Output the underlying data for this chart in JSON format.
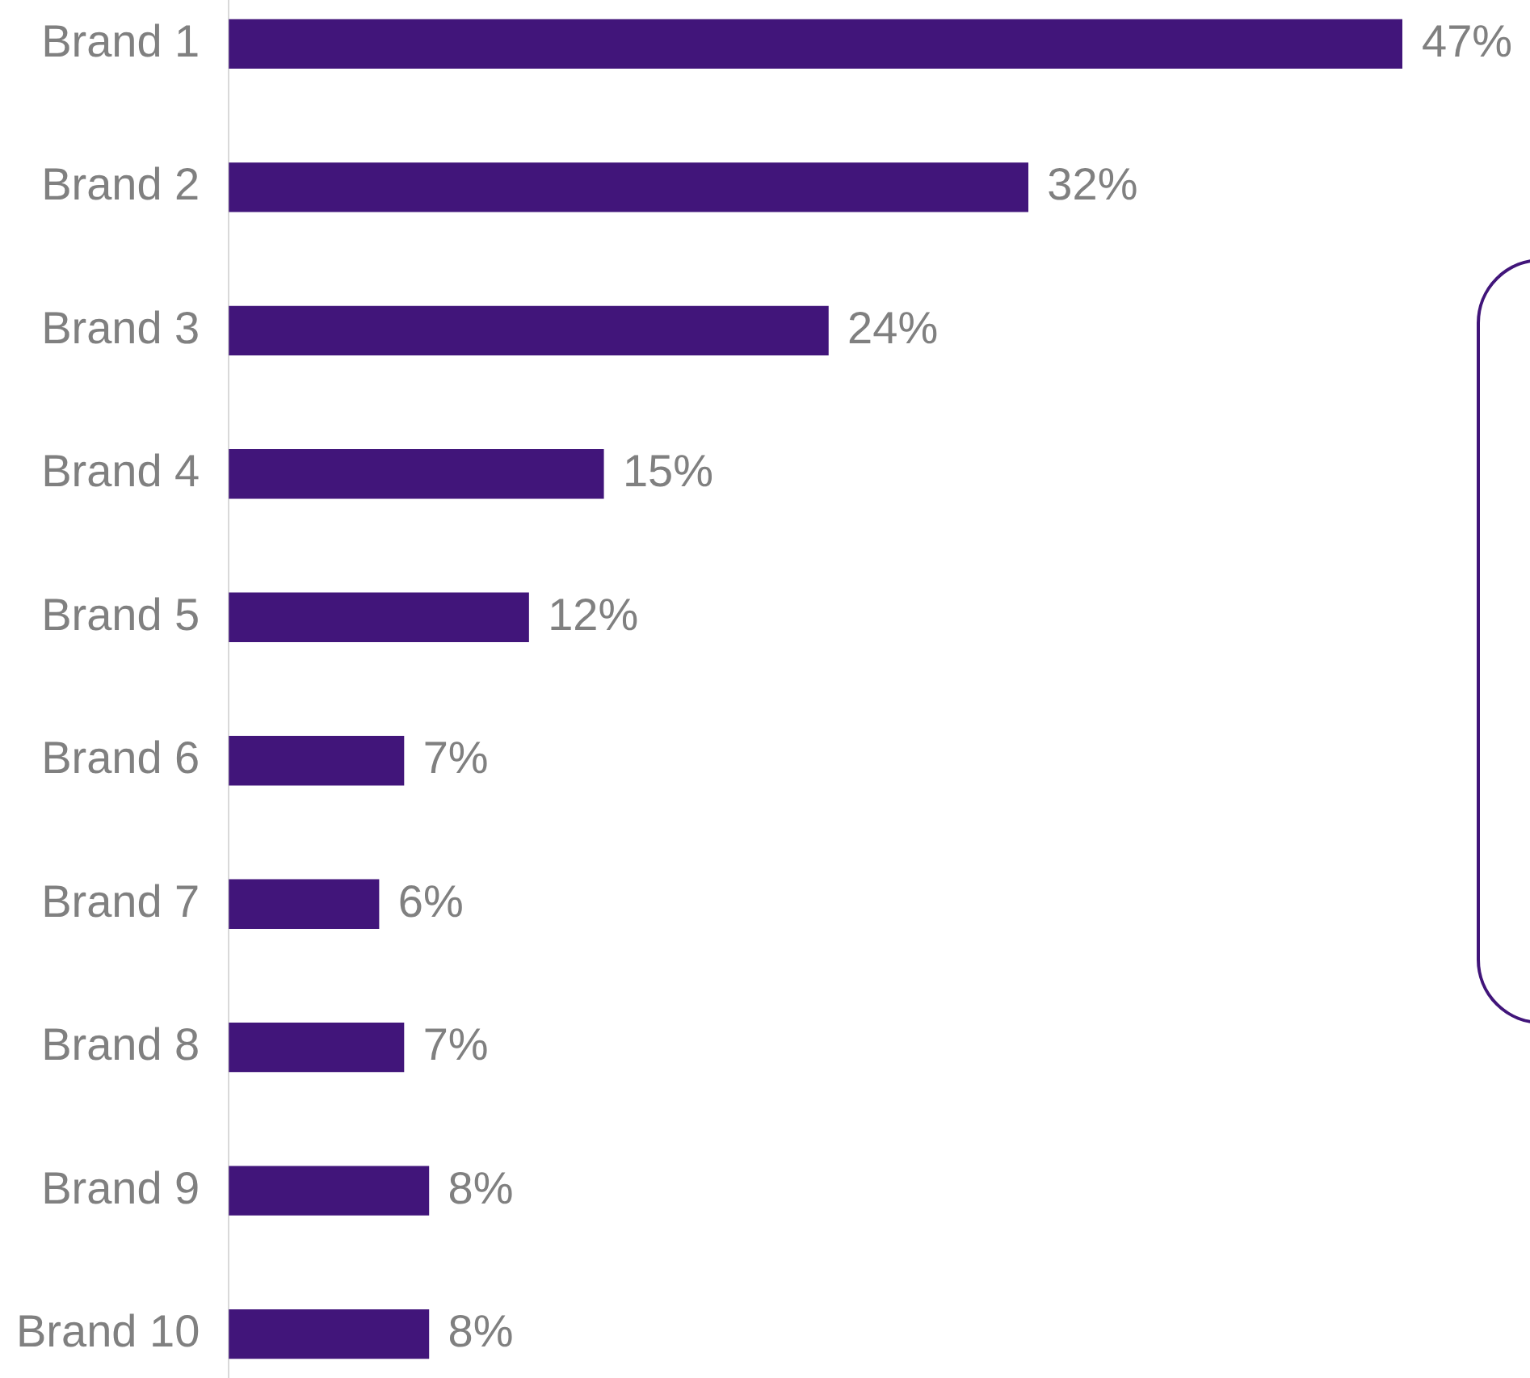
{
  "chart_data": {
    "type": "bar",
    "orientation": "horizontal",
    "categories": [
      "Brand 1",
      "Brand 2",
      "Brand 3",
      "Brand 4",
      "Brand 5",
      "Brand 6",
      "Brand 7",
      "Brand 8",
      "Brand 9",
      "Brand 10"
    ],
    "values": [
      47,
      32,
      24,
      15,
      12,
      7,
      6,
      7,
      8,
      8
    ],
    "value_labels": [
      "47%",
      "32%",
      "24%",
      "15%",
      "12%",
      "7%",
      "6%",
      "7%",
      "8%",
      "8%"
    ],
    "color": "#41157a"
  }
}
